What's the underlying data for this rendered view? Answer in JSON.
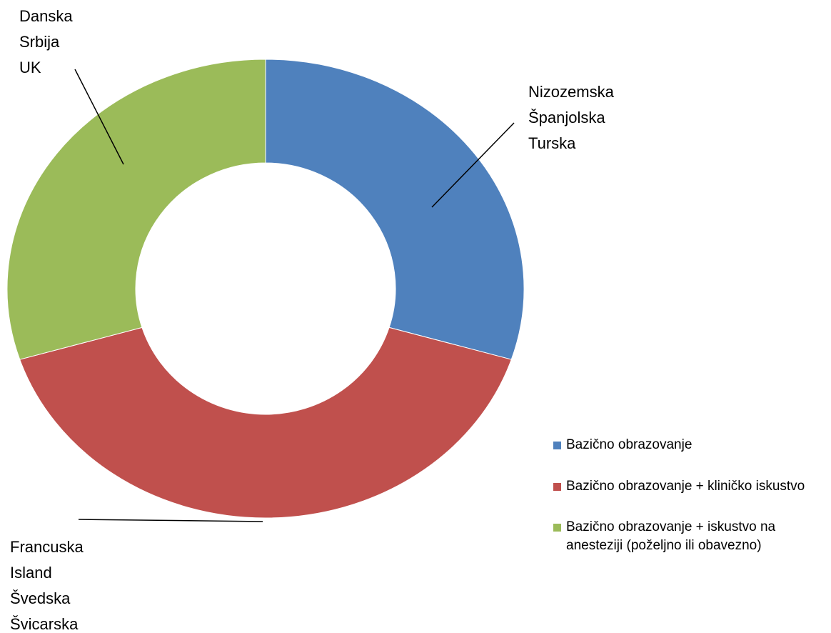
{
  "chart_data": {
    "type": "donut",
    "series": [
      {
        "name": "Bazično obrazovanje",
        "color": "#4f81bd"
      },
      {
        "name": "Bazično obrazovanje + kliničko iskustvo",
        "color": "#c0504d"
      },
      {
        "name": "Bazično obrazovanje + iskustvo na anesteziji (poželjno ili obavezno)",
        "color": "#9bbb59"
      }
    ],
    "values": [
      3,
      4,
      3
    ],
    "data_labels": [
      [
        "Nizozemska",
        "Španjolska",
        "Turska"
      ],
      [
        "Francuska",
        "Island",
        "Švedska",
        "Švicarska"
      ],
      [
        "Danska",
        "Srbija",
        "UK"
      ]
    ],
    "legend": "right-bottom"
  }
}
